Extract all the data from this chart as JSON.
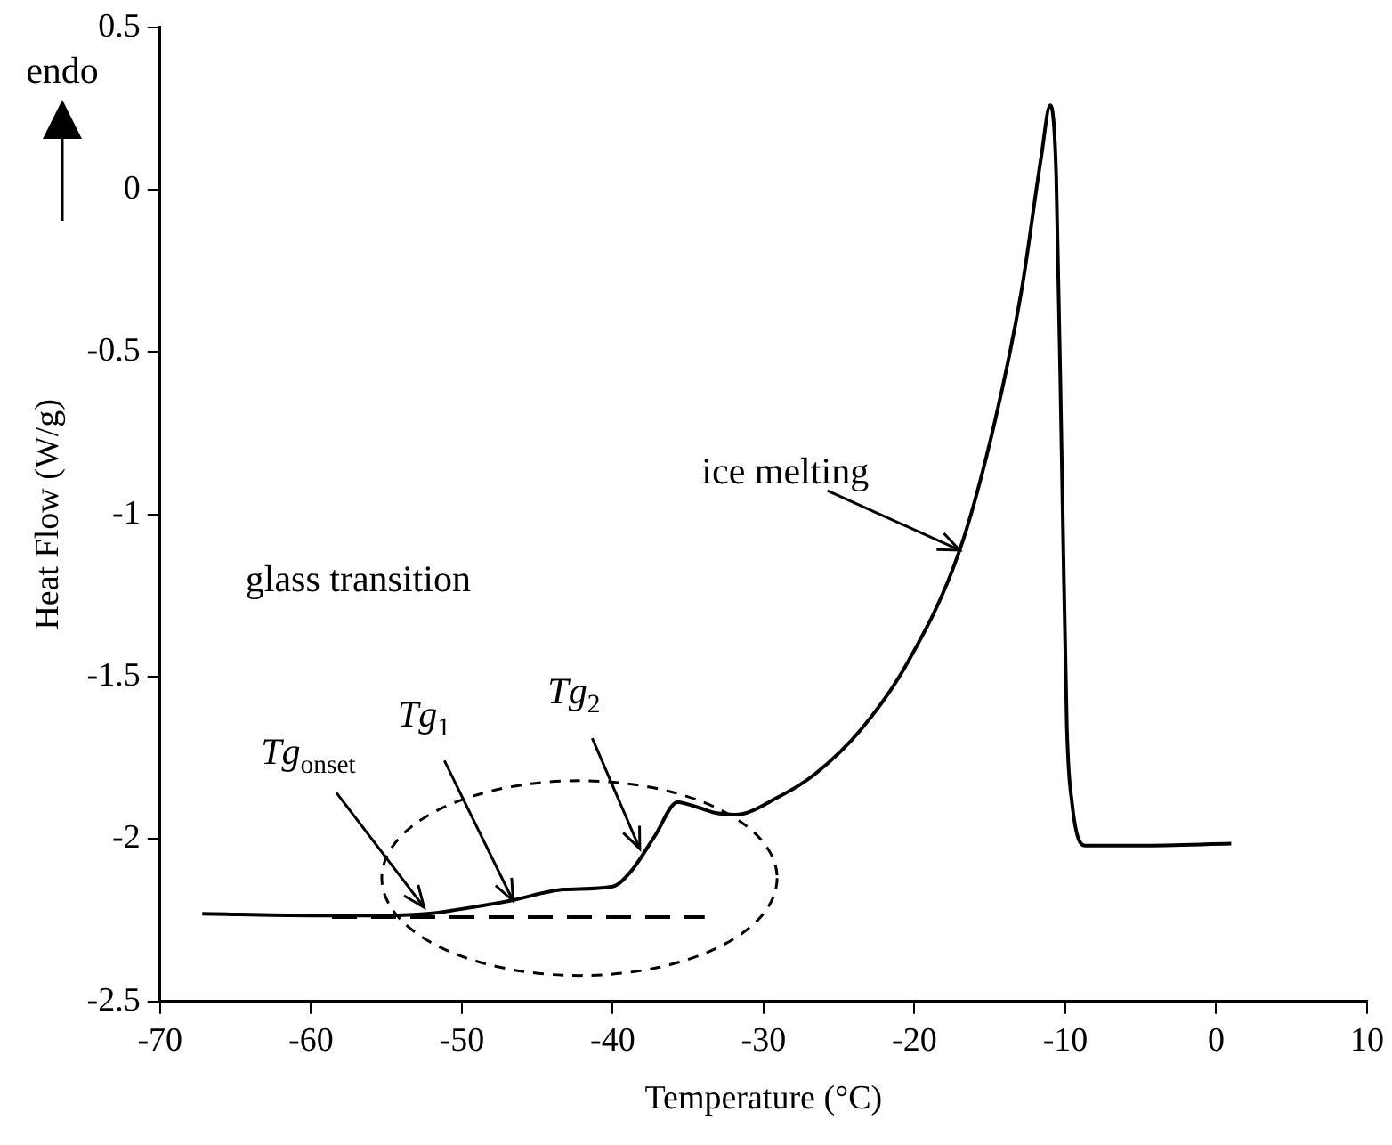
{
  "chart_data": {
    "type": "line",
    "xlabel": "Temperature (°C)",
    "ylabel": "Heat Flow (W/g)",
    "xlim": [
      -70,
      10
    ],
    "xticks": [
      -70,
      -60,
      -50,
      -40,
      -30,
      -20,
      -10,
      0,
      10
    ],
    "ylim": [
      -2.5,
      0.5
    ],
    "yticks": [
      -2.5,
      -2,
      -1.5,
      -1,
      -0.5,
      0,
      0.5
    ],
    "grid": false,
    "legend": false,
    "marker": "none",
    "series": [
      {
        "color": "#000000",
        "line_style": "solid",
        "x": [
          -67.2,
          -60,
          -55,
          -52.3,
          -50,
          -46.8,
          -43.2,
          -40,
          -38.8,
          -37.2,
          -35.7,
          -34.5,
          -33.1,
          -31.9,
          -29,
          -26.6,
          -23.5,
          -20.5,
          -17,
          -14.7,
          -12.9,
          -11.6,
          -11,
          -10.6,
          -10.2,
          -9.9,
          -9.55,
          -8.7,
          -5,
          1
        ],
        "values": [
          -2.23,
          -2.235,
          -2.235,
          -2.23,
          -2.215,
          -2.19,
          -2.155,
          -2.146,
          -2.1,
          -1.99,
          -1.886,
          -1.9,
          -1.92,
          -1.925,
          -1.87,
          -1.8,
          -1.66,
          -1.46,
          -1.11,
          -0.72,
          -0.31,
          0.1,
          0.26,
          0.04,
          -0.92,
          -1.65,
          -1.89,
          -2.02,
          -2.02,
          -2.014
        ]
      },
      {
        "color": "#000000",
        "line_style": "dashed",
        "x": [
          -58.6,
          -33.9
        ],
        "values": [
          -2.24,
          -2.24
        ]
      }
    ],
    "annotations": [
      "glass transition",
      {
        "text": "Tg$_{onset}$",
        "x": -52.5,
        "y": -2.21
      },
      {
        "text": "Tg$_{1}$",
        "x": -46.6,
        "y": -2.19
      },
      {
        "text": "Tg$_{2}$",
        "x": -38.2,
        "y": -2.03
      },
      {
        "text": "ice melting",
        "x": -17,
        "y": -1.11
      },
      "endo"
    ]
  }
}
